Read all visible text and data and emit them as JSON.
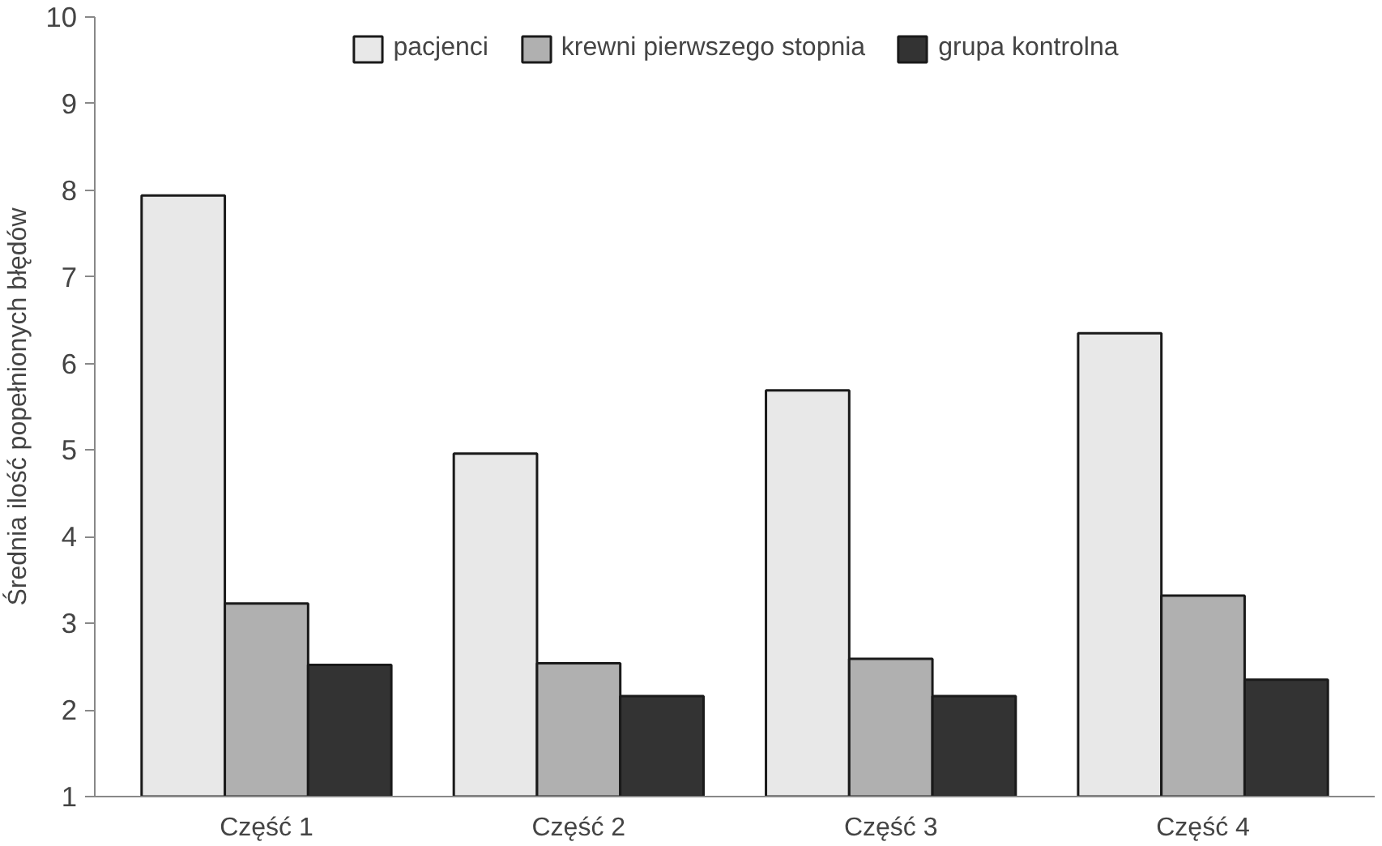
{
  "chart_data": {
    "type": "bar",
    "ylabel": "Średnia ilość popełnionych błędów",
    "categories": [
      "Część 1",
      "Część 2",
      "Część 3",
      "Część 4"
    ],
    "series": [
      {
        "name": "pacjenci",
        "color": "#e8e8e8",
        "values": [
          7.94,
          4.96,
          5.69,
          6.35
        ]
      },
      {
        "name": "krewni pierwszego stopnia",
        "color": "#b0b0b0",
        "values": [
          3.23,
          2.54,
          2.59,
          3.32
        ]
      },
      {
        "name": "grupa kontrolna",
        "color": "#333333",
        "values": [
          2.52,
          2.16,
          2.16,
          2.35
        ]
      }
    ],
    "ylim": [
      1,
      10
    ],
    "yticks": [
      1,
      2,
      3,
      4,
      5,
      6,
      7,
      8,
      9,
      10
    ],
    "grid": false,
    "legend": "top"
  }
}
